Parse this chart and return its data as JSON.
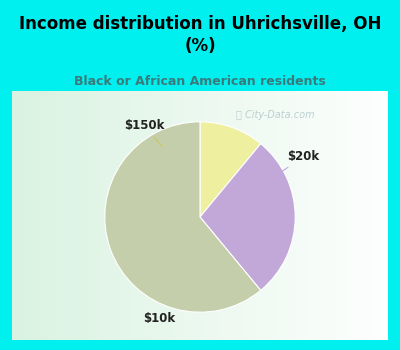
{
  "title": "Income distribution in Uhrichsville, OH\n(%)",
  "subtitle": "Black or African American residents",
  "slices": [
    {
      "label": "$150k",
      "value": 11,
      "color": "#eef0a0"
    },
    {
      "label": "$20k",
      "value": 28,
      "color": "#c2a8d8"
    },
    {
      "label": "$10k",
      "value": 61,
      "color": "#c5ceaa"
    }
  ],
  "bg_cyan": "#00f0f0",
  "title_color": "#000000",
  "subtitle_color": "#3a7a7a",
  "watermark": "ⓘ City-Data.com",
  "label_fontsize": 8.5,
  "title_fontsize": 12,
  "subtitle_fontsize": 9
}
